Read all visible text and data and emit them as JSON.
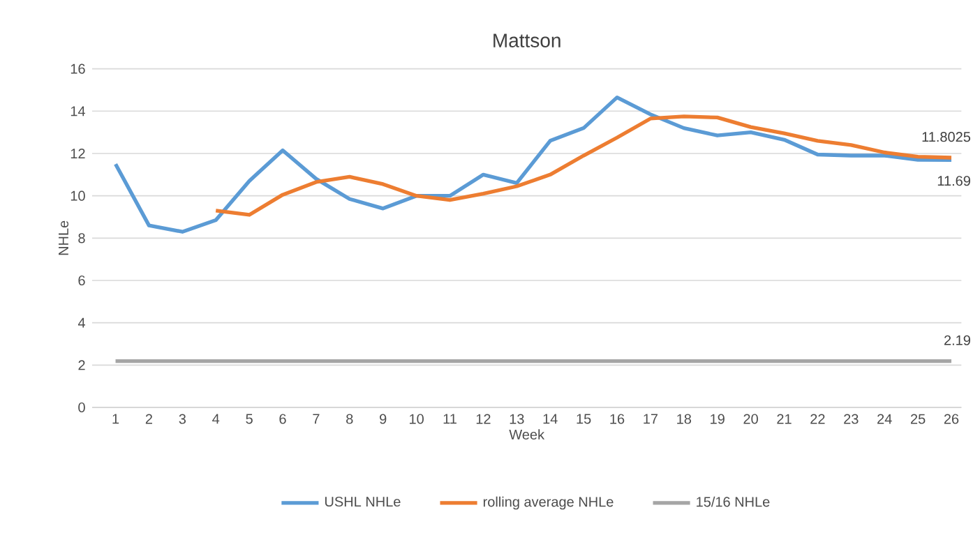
{
  "chart_data": {
    "type": "line",
    "title": "Mattson",
    "xlabel": "Week",
    "ylabel": "NHLe",
    "categories": [
      "1",
      "2",
      "3",
      "4",
      "5",
      "6",
      "7",
      "8",
      "9",
      "10",
      "11",
      "12",
      "13",
      "14",
      "15",
      "16",
      "17",
      "18",
      "19",
      "20",
      "21",
      "22",
      "23",
      "24",
      "25",
      "26"
    ],
    "series": [
      {
        "name": "USHL NHLe",
        "color": "#5b9bd5",
        "values": [
          11.5,
          8.6,
          8.3,
          8.85,
          10.7,
          12.15,
          10.8,
          9.85,
          9.4,
          10.0,
          10.0,
          11.0,
          10.6,
          12.6,
          13.2,
          14.65,
          13.85,
          13.2,
          12.85,
          13.0,
          12.65,
          11.95,
          11.9,
          11.9,
          11.7,
          11.69
        ],
        "value_labels": [
          null,
          null,
          null,
          null,
          null,
          null,
          null,
          null,
          null,
          null,
          null,
          null,
          null,
          null,
          null,
          null,
          null,
          null,
          null,
          null,
          null,
          null,
          null,
          null,
          null,
          "11.69"
        ]
      },
      {
        "name": "rolling average NHLe",
        "color": "#ed7d31",
        "values": [
          null,
          null,
          null,
          9.3,
          9.1,
          10.05,
          10.65,
          10.9,
          10.55,
          10.0,
          9.8,
          10.1,
          10.45,
          11.0,
          11.9,
          12.75,
          13.65,
          13.75,
          13.7,
          13.25,
          12.95,
          12.6,
          12.4,
          12.05,
          11.85,
          11.8025
        ],
        "value_labels": [
          null,
          null,
          null,
          null,
          null,
          null,
          null,
          null,
          null,
          null,
          null,
          null,
          null,
          null,
          null,
          null,
          null,
          null,
          null,
          null,
          null,
          null,
          null,
          null,
          null,
          "11.8025"
        ]
      },
      {
        "name": "15/16 NHLe",
        "color": "#a5a5a5",
        "values": [
          2.19,
          2.19,
          2.19,
          2.19,
          2.19,
          2.19,
          2.19,
          2.19,
          2.19,
          2.19,
          2.19,
          2.19,
          2.19,
          2.19,
          2.19,
          2.19,
          2.19,
          2.19,
          2.19,
          2.19,
          2.19,
          2.19,
          2.19,
          2.19,
          2.19,
          2.19
        ],
        "value_labels": [
          null,
          null,
          null,
          null,
          null,
          null,
          null,
          null,
          null,
          null,
          null,
          null,
          null,
          null,
          null,
          null,
          null,
          null,
          null,
          null,
          null,
          null,
          null,
          null,
          null,
          "2.19"
        ]
      }
    ],
    "ylim": [
      0,
      16
    ],
    "yticks": [
      0,
      2,
      4,
      6,
      8,
      10,
      12,
      14,
      16
    ],
    "grid": "y",
    "legend": "bottom",
    "marker": "none",
    "line_style": "solid"
  }
}
